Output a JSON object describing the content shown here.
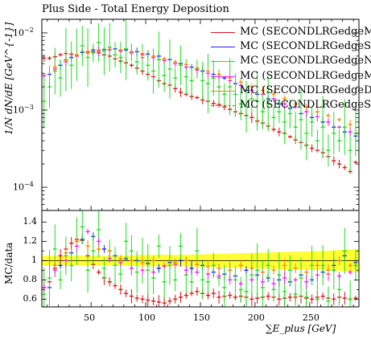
{
  "chart_data": {
    "type": "scatter",
    "title": "Plus Side - Total Energy Deposition",
    "ylabel": "1/N dN/dE [GeV^{-1}]",
    "ratio_ylabel": "MC/data",
    "xlabel": "∑E_plus [GeV]",
    "xlim": [
      5,
      295
    ],
    "ylim_log": [
      5e-05,
      0.015
    ],
    "ratio_ylim": [
      0.52,
      1.52
    ],
    "yscale": "log",
    "x_ticks": [
      50,
      100,
      150,
      200,
      250
    ],
    "y_ticks_top": [
      {
        "value": 0.01,
        "label": "10^{-2}"
      },
      {
        "value": 0.001,
        "label": "10^{-3}"
      },
      {
        "value": 0.0001,
        "label": "10^{-4}"
      }
    ],
    "y_ticks_bottom": [
      0.6,
      0.8,
      1.0,
      1.2,
      1.4
    ],
    "y_ticks_bottom_labels": [
      "0.6",
      "0.8",
      "1",
      "1.2",
      "1.4"
    ],
    "legend_position": "top-right",
    "series": [
      {
        "name": "MC (SECONDLRGedgeM",
        "color": "#dd1111",
        "style": "solid",
        "x": [
          7,
          12,
          17,
          22,
          27,
          32,
          37,
          42,
          47,
          52,
          57,
          62,
          67,
          72,
          77,
          82,
          87,
          92,
          97,
          102,
          107,
          112,
          117,
          122,
          127,
          132,
          137,
          142,
          147,
          152,
          157,
          162,
          167,
          172,
          177,
          182,
          187,
          192,
          197,
          202,
          207,
          212,
          217,
          222,
          227,
          232,
          237,
          242,
          247,
          252,
          257,
          262,
          267,
          272,
          277,
          282,
          287,
          292
        ],
        "y": [
          0.0047,
          0.0047,
          0.0049,
          0.0052,
          0.0054,
          0.0053,
          0.0052,
          0.0056,
          0.0057,
          0.0057,
          0.0055,
          0.0052,
          0.005,
          0.0046,
          0.0043,
          0.0041,
          0.0038,
          0.0035,
          0.0032,
          0.0029,
          0.0027,
          0.0024,
          0.0022,
          0.0021,
          0.0019,
          0.0017,
          0.0016,
          0.0015,
          0.00145,
          0.00135,
          0.0013,
          0.00122,
          0.00118,
          0.0011,
          0.00102,
          0.00095,
          0.0009,
          0.00085,
          0.0008,
          0.00072,
          0.00068,
          0.00062,
          0.00056,
          0.00052,
          0.0005,
          0.00045,
          0.00041,
          0.00038,
          0.00035,
          0.00032,
          0.0003,
          0.00028,
          0.00025,
          0.00022,
          0.0002,
          0.00018,
          0.00016,
          0.00021
        ],
        "ratio": [
          0.72,
          0.78,
          0.92,
          1.05,
          1.12,
          1.18,
          1.22,
          1.21,
          1.05,
          0.96,
          0.88,
          0.82,
          0.78,
          0.74,
          0.7,
          0.66,
          0.63,
          0.61,
          0.6,
          0.59,
          0.58,
          0.57,
          0.56,
          0.58,
          0.6,
          0.62,
          0.64,
          0.66,
          0.68,
          0.66,
          0.64,
          0.66,
          0.62,
          0.63,
          0.64,
          0.62,
          0.63,
          0.62,
          0.6,
          0.61,
          0.62,
          0.63,
          0.62,
          0.6,
          0.61,
          0.62,
          0.62,
          0.63,
          0.61,
          0.6,
          0.62,
          0.63,
          0.61,
          0.6,
          0.62,
          0.61,
          0.6,
          0.61
        ]
      },
      {
        "name": "MC (SECONDLRGedgeSi",
        "color": "#1a22ee",
        "style": "solid",
        "x": [
          12,
          22,
          32,
          42,
          52,
          62,
          72,
          82,
          92,
          102,
          112,
          122,
          132,
          142,
          152,
          162,
          172,
          182,
          192,
          202,
          212,
          222,
          232,
          242,
          252,
          262,
          272,
          282,
          292
        ],
        "y": [
          0.0029,
          0.0038,
          0.0048,
          0.0056,
          0.006,
          0.0061,
          0.0062,
          0.006,
          0.0057,
          0.0053,
          0.005,
          0.0045,
          0.004,
          0.0036,
          0.0032,
          0.0029,
          0.0026,
          0.0022,
          0.0018,
          0.0016,
          0.0014,
          0.0012,
          0.00105,
          0.0009,
          0.0008,
          0.0007,
          0.0006,
          0.00052,
          0.00046
        ],
        "ratio": [
          0.72,
          0.95,
          1.08,
          1.22,
          1.25,
          1.12,
          1.05,
          1.02,
          1.0,
          0.97,
          0.92,
          0.98,
          1.0,
          0.92,
          0.95,
          0.88,
          0.86,
          0.84,
          0.9,
          0.85,
          0.82,
          0.8,
          0.78,
          0.85,
          0.8,
          0.88,
          0.95,
          1.05,
          0.98
        ]
      },
      {
        "name": "MC (SECONDLRGedgeN",
        "color": "#22dd22",
        "style": "solid",
        "x": [
          7,
          12,
          17,
          22,
          27,
          32,
          37,
          42,
          47,
          52,
          57,
          62,
          67,
          72,
          77,
          82,
          87,
          92,
          97,
          102,
          107,
          112,
          117,
          122,
          127,
          132,
          137,
          142,
          147,
          152,
          157,
          162,
          167,
          172,
          177,
          182,
          187,
          192,
          197,
          202,
          207,
          212,
          217,
          222,
          227,
          232,
          237,
          242,
          247,
          252,
          257,
          262,
          267,
          272,
          277,
          282,
          287,
          292
        ],
        "y": [
          0.0013,
          0.002,
          0.0032,
          0.0026,
          0.0045,
          0.0038,
          0.0052,
          0.0068,
          0.0048,
          0.0055,
          0.0075,
          0.0058,
          0.0065,
          0.0052,
          0.0048,
          0.0062,
          0.0056,
          0.0042,
          0.0048,
          0.0038,
          0.0032,
          0.0045,
          0.0028,
          0.0034,
          0.0026,
          0.0038,
          0.0027,
          0.0024,
          0.0034,
          0.0024,
          0.0022,
          0.0026,
          0.002,
          0.0016,
          0.002,
          0.0016,
          0.0012,
          0.0011,
          0.0014,
          0.0013,
          0.00095,
          0.0012,
          0.0008,
          0.00095,
          0.0007,
          0.0009,
          0.0006,
          0.00075,
          0.0005,
          0.0007,
          0.0004,
          0.0006,
          0.0003,
          0.0005,
          0.0004,
          0.0006,
          0.0003,
          0.0005
        ],
        "ratio": [
          0.65,
          0.82,
          1.12,
          0.8,
          1.05,
          0.95,
          1.2,
          1.35,
          0.9,
          1.1,
          1.32,
          0.92,
          1.1,
          0.95,
          0.86,
          1.2,
          1.1,
          0.88,
          1.0,
          0.9,
          0.82,
          1.15,
          0.78,
          0.95,
          0.8,
          1.15,
          0.85,
          0.78,
          1.1,
          0.8,
          0.78,
          0.95,
          0.82,
          0.72,
          0.9,
          0.8,
          0.7,
          0.68,
          0.85,
          0.9,
          0.72,
          0.95,
          0.7,
          0.85,
          0.68,
          0.9,
          0.65,
          0.82,
          0.62,
          0.95,
          0.6,
          0.95,
          0.58,
          0.9,
          0.7,
          1.1,
          0.6,
          0.95
        ]
      },
      {
        "name": "MC (SECONDLRGedgeM",
        "color": "#ee22ee",
        "style": "solid",
        "x": [
          7,
          17,
          27,
          37,
          47,
          57,
          67,
          77,
          87,
          97,
          107,
          117,
          127,
          137,
          147,
          157,
          167,
          177,
          187,
          197,
          207,
          217,
          227,
          237,
          247,
          257,
          267,
          277,
          287
        ],
        "y": [
          0.0028,
          0.0034,
          0.0042,
          0.005,
          0.0055,
          0.0058,
          0.006,
          0.0058,
          0.0055,
          0.0052,
          0.0048,
          0.0044,
          0.004,
          0.0036,
          0.0033,
          0.003,
          0.0027,
          0.0024,
          0.0021,
          0.0018,
          0.0016,
          0.0014,
          0.0012,
          0.0011,
          0.00095,
          0.00082,
          0.0007,
          0.0006,
          0.00052
        ],
        "ratio": [
          0.72,
          0.9,
          1.0,
          1.15,
          1.3,
          1.2,
          1.02,
          0.98,
          0.92,
          0.9,
          0.88,
          0.94,
          0.96,
          0.9,
          0.88,
          0.86,
          0.84,
          0.8,
          0.76,
          0.8,
          0.78,
          0.76,
          0.82,
          0.8,
          0.78,
          0.85,
          0.86,
          0.84,
          0.88
        ]
      },
      {
        "name": "MC (SECONDLRGedgeDi",
        "color": "#ee8800",
        "style": "solid",
        "x": [
          17,
          27,
          37,
          47,
          57,
          67,
          77,
          87,
          97,
          107,
          117,
          127,
          137,
          147,
          157,
          167,
          177,
          187,
          197,
          207,
          217,
          227,
          237,
          247,
          257,
          267,
          277,
          287
        ],
        "y": [
          0.0036,
          0.0044,
          0.0051,
          0.0056,
          0.006,
          0.0061,
          0.006,
          0.0057,
          0.0054,
          0.005,
          0.0046,
          0.0042,
          0.0039,
          0.0035,
          0.0032,
          0.0029,
          0.0026,
          0.0023,
          0.002,
          0.0018,
          0.0016,
          0.0014,
          0.0012,
          0.0011,
          0.00095,
          0.00085,
          0.00075,
          0.00065
        ],
        "ratio": [
          0.95,
          1.08,
          1.2,
          1.15,
          1.12,
          1.1,
          1.02,
          1.0,
          0.98,
          1.0,
          0.95,
          0.98,
          1.0,
          0.96,
          0.94,
          0.92,
          0.9,
          0.95,
          0.92,
          0.88,
          0.9,
          0.95,
          0.92,
          0.88,
          0.95,
          0.9,
          1.0,
          0.95
        ]
      },
      {
        "name": "MC (SECONDLRGedgeSi",
        "color": "#cc5533",
        "style": "dashed",
        "x": [],
        "y": [],
        "ratio": []
      }
    ],
    "data_band": {
      "color": "#ffff33",
      "ratio_half_width": [
        0.05,
        0.05,
        0.05,
        0.06,
        0.06,
        0.07,
        0.08,
        0.09,
        0.1,
        0.12
      ]
    }
  }
}
